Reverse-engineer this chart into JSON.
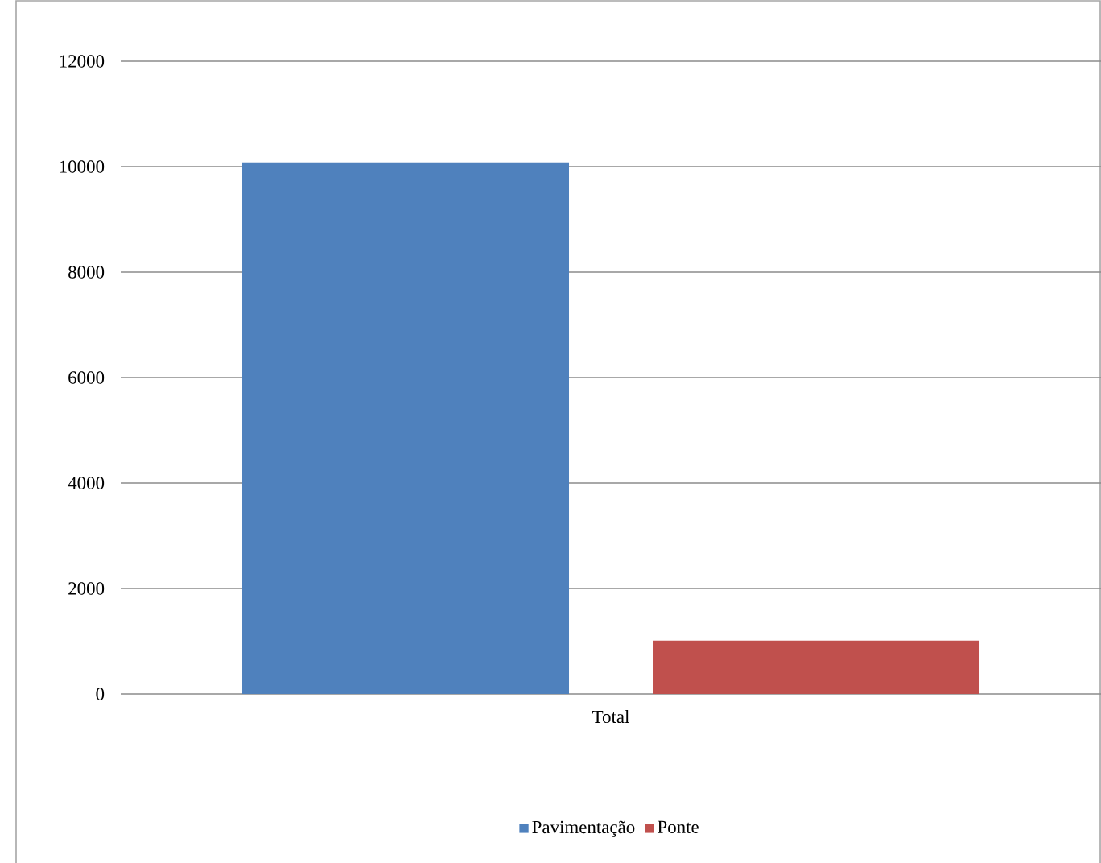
{
  "chart_data": {
    "type": "bar",
    "categories": [
      "Total"
    ],
    "series": [
      {
        "name": "Pavimentação",
        "color": "#4f81bd",
        "values": [
          10080
        ]
      },
      {
        "name": "Ponte",
        "color": "#c0504d",
        "values": [
          1010
        ]
      }
    ],
    "ylim": [
      0,
      12000
    ],
    "yticks": [
      0,
      2000,
      4000,
      6000,
      8000,
      10000,
      12000
    ],
    "grid": "y",
    "legend": "bottom"
  }
}
